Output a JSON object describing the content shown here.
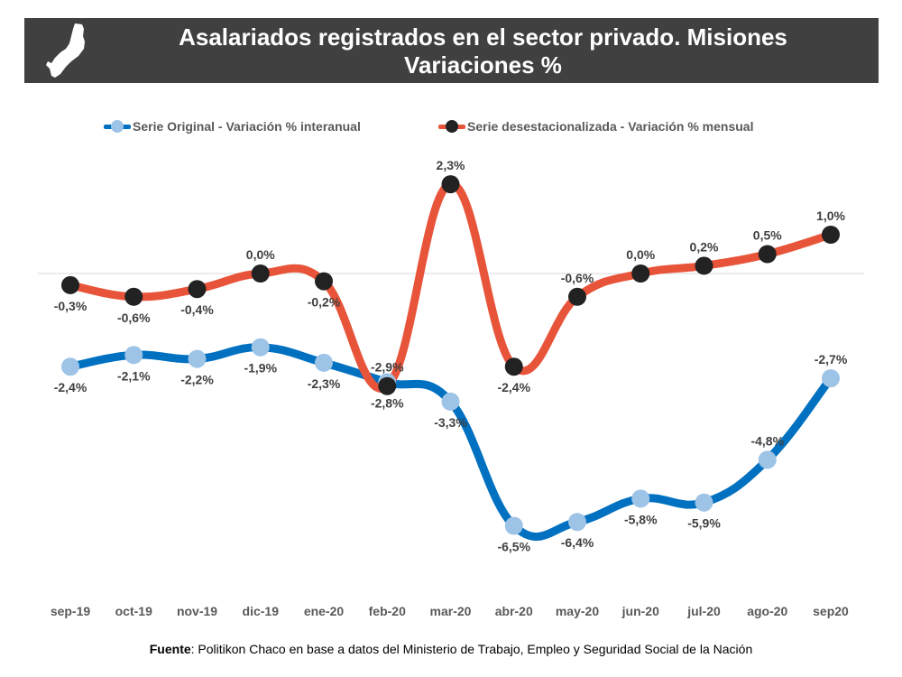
{
  "header": {
    "title_line1": "Asalariados registrados en el sector privado.  Misiones",
    "title_line2": "Variaciones %",
    "icon": "misiones-province-map-icon"
  },
  "colors": {
    "banner_bg": "#404040",
    "series_original_line": "#0070c0",
    "series_original_marker": "#9dc3e6",
    "series_desest_line": "#e8543a",
    "series_desest_marker": "#222222",
    "zero_line": "#d9d9d9"
  },
  "chart_data": {
    "type": "line",
    "title": "Asalariados registrados en el sector privado. Misiones - Variaciones %",
    "xlabel": "",
    "ylabel": "",
    "categories": [
      "sep-19",
      "oct-19",
      "nov-19",
      "dic-19",
      "ene-20",
      "feb-20",
      "mar-20",
      "abr-20",
      "may-20",
      "jun-20",
      "jul-20",
      "ago-20",
      "sep20"
    ],
    "series": [
      {
        "name": "Serie Original - Variación % interanual",
        "values": [
          -2.4,
          -2.1,
          -2.2,
          -1.9,
          -2.3,
          -2.8,
          -3.3,
          -6.5,
          -6.4,
          -5.8,
          -5.9,
          -4.8,
          -2.7
        ],
        "labels": [
          "-2,4%",
          "-2,1%",
          "-2,2%",
          "-1,9%",
          "-2,3%",
          "-2,8%",
          "-3,3%",
          "-6,5%",
          "-6,4%",
          "-5,8%",
          "-5,9%",
          "-4,8%",
          "-2,7%"
        ],
        "label_pos": [
          "below",
          "below",
          "below",
          "below",
          "below",
          "below",
          "below",
          "below",
          "below",
          "below",
          "below",
          "above",
          "above"
        ]
      },
      {
        "name": "Serie desestacionalizada - Variación % mensual",
        "values": [
          -0.3,
          -0.6,
          -0.4,
          0.0,
          -0.2,
          -2.9,
          2.3,
          -2.4,
          -0.6,
          0.0,
          0.2,
          0.5,
          1.0
        ],
        "labels": [
          "-0,3%",
          "-0,6%",
          "-0,4%",
          "0,0%",
          "-0,2%",
          "-2,9%",
          "2,3%",
          "-2,4%",
          "-0,6%",
          "0,0%",
          "0,2%",
          "0,5%",
          "1,0%"
        ],
        "label_pos": [
          "below",
          "below",
          "below",
          "above",
          "below",
          "above",
          "above",
          "below",
          "above",
          "above",
          "above",
          "above",
          "above"
        ]
      }
    ],
    "ylim": [
      -7.5,
      2.9
    ],
    "grid": false,
    "zero_line": true,
    "legend_position": "top-center"
  },
  "legend": {
    "item1": "Serie Original - Variación % interanual",
    "item2": "Serie desestacionalizada - Variación % mensual"
  },
  "footer": {
    "source_label": "Fuente",
    "source_text": ": Politikon Chaco en base a datos del Ministerio de Trabajo, Empleo y Seguridad Social de la Nación"
  }
}
